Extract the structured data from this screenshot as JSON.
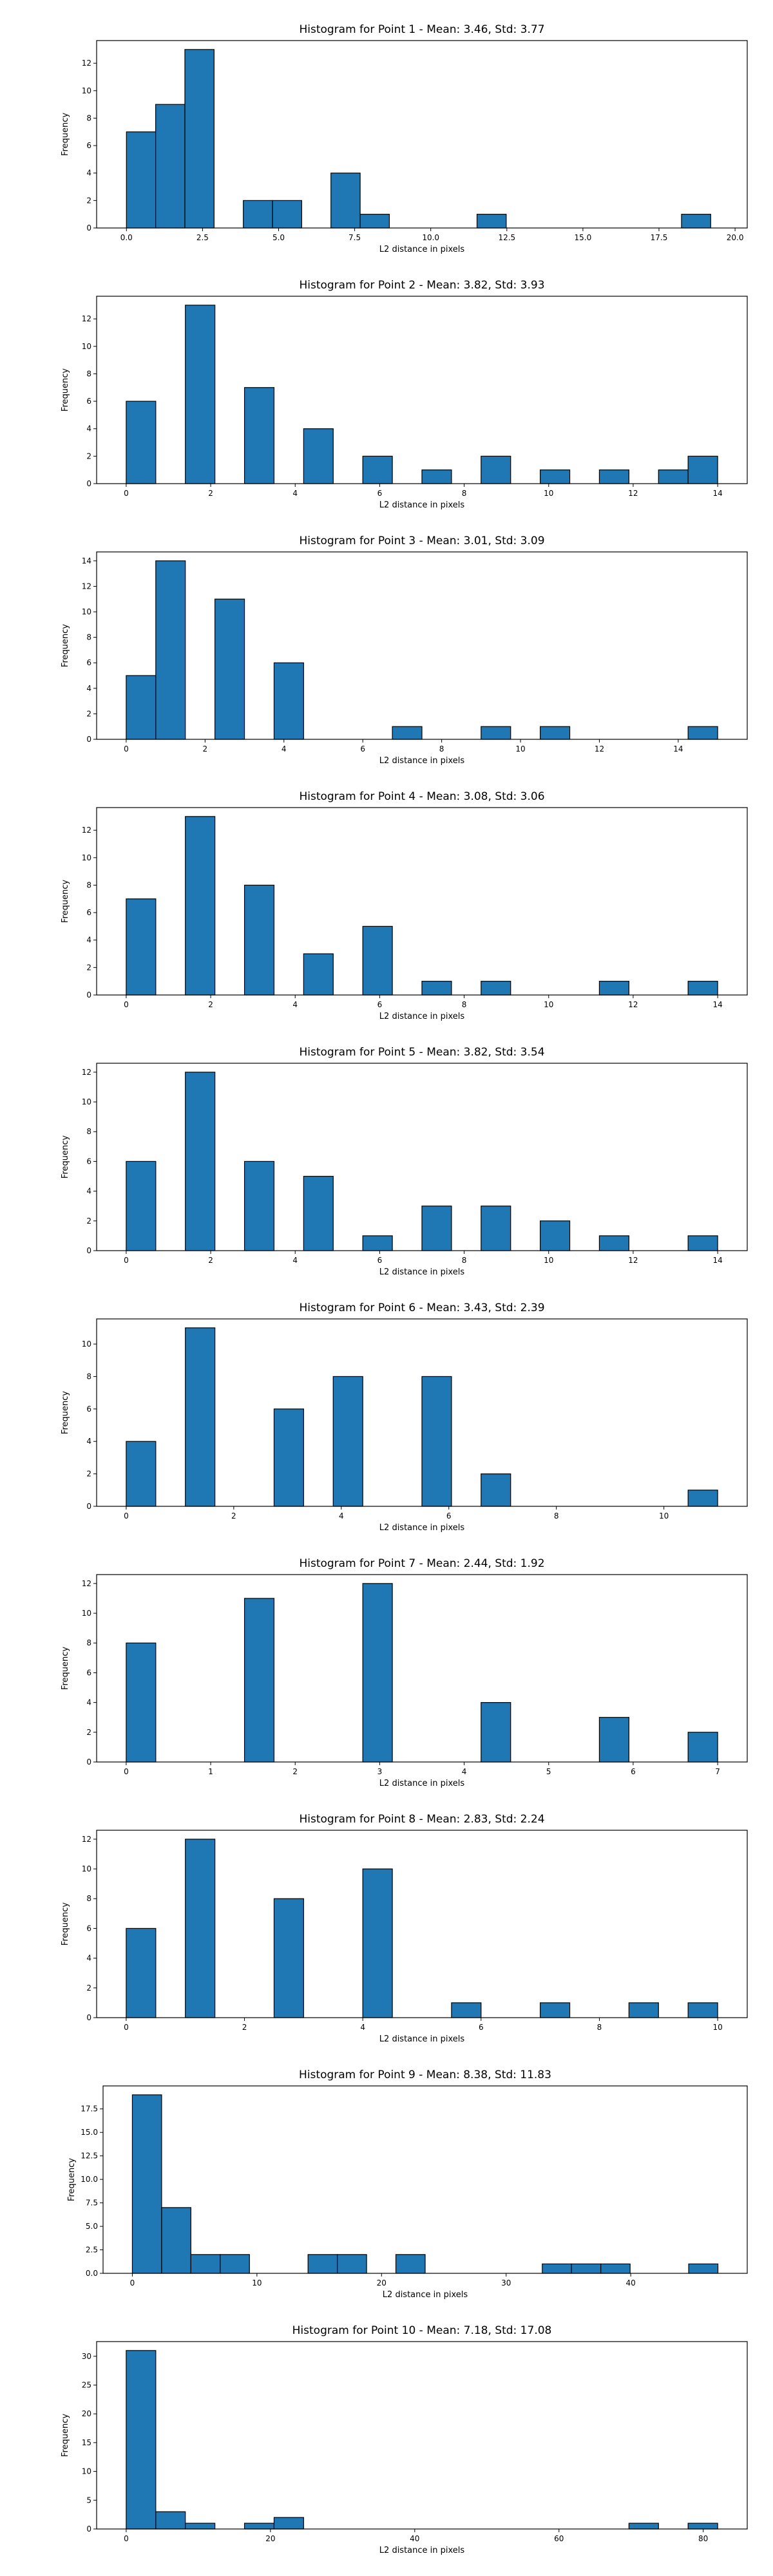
{
  "chart_data": [
    {
      "type": "bar",
      "title": "Histogram for Point 1 - Mean: 3.46, Std: 3.77",
      "xlabel": "L2 distance in pixels",
      "ylabel": "Frequency",
      "xlim": [
        -0.98,
        20.4
      ],
      "ylim": [
        0,
        13.65
      ],
      "xticks": [
        0.0,
        2.5,
        5.0,
        7.5,
        10.0,
        12.5,
        15.0,
        17.5,
        20.0
      ],
      "xtick_labels": [
        "0.0",
        "2.5",
        "5.0",
        "7.5",
        "10.0",
        "12.5",
        "15.0",
        "17.5",
        "20.0"
      ],
      "yticks": [
        0,
        2,
        4,
        6,
        8,
        10,
        12
      ],
      "ytick_labels": [
        "0",
        "2",
        "4",
        "6",
        "8",
        "10",
        "12"
      ],
      "bins": [
        {
          "x0": 0.0,
          "x1": 0.96,
          "count": 7
        },
        {
          "x0": 0.96,
          "x1": 1.92,
          "count": 9
        },
        {
          "x0": 1.92,
          "x1": 2.88,
          "count": 13
        },
        {
          "x0": 3.84,
          "x1": 4.8,
          "count": 2
        },
        {
          "x0": 4.8,
          "x1": 5.76,
          "count": 2
        },
        {
          "x0": 6.72,
          "x1": 7.68,
          "count": 4
        },
        {
          "x0": 7.68,
          "x1": 8.64,
          "count": 1
        },
        {
          "x0": 11.52,
          "x1": 12.48,
          "count": 1
        },
        {
          "x0": 18.24,
          "x1": 19.2,
          "count": 1
        }
      ]
    },
    {
      "type": "bar",
      "title": "Histogram for Point 2 - Mean: 3.82, Std: 3.93",
      "xlabel": "L2 distance in pixels",
      "ylabel": "Frequency",
      "xlim": [
        -0.7,
        14.7
      ],
      "ylim": [
        0,
        13.65
      ],
      "xticks": [
        0,
        2,
        4,
        6,
        8,
        10,
        12,
        14
      ],
      "xtick_labels": [
        "0",
        "2",
        "4",
        "6",
        "8",
        "10",
        "12",
        "14"
      ],
      "yticks": [
        0,
        2,
        4,
        6,
        8,
        10,
        12
      ],
      "ytick_labels": [
        "0",
        "2",
        "4",
        "6",
        "8",
        "10",
        "12"
      ],
      "bins": [
        {
          "x0": 0.0,
          "x1": 0.7,
          "count": 6
        },
        {
          "x0": 1.4,
          "x1": 2.1,
          "count": 13
        },
        {
          "x0": 2.8,
          "x1": 3.5,
          "count": 7
        },
        {
          "x0": 4.2,
          "x1": 4.9,
          "count": 4
        },
        {
          "x0": 5.6,
          "x1": 6.3,
          "count": 2
        },
        {
          "x0": 7.0,
          "x1": 7.7,
          "count": 1
        },
        {
          "x0": 8.4,
          "x1": 9.1,
          "count": 2
        },
        {
          "x0": 9.8,
          "x1": 10.5,
          "count": 1
        },
        {
          "x0": 11.2,
          "x1": 11.9,
          "count": 1
        },
        {
          "x0": 12.6,
          "x1": 13.3,
          "count": 1
        },
        {
          "x0": 13.3,
          "x1": 14.0,
          "count": 2
        }
      ]
    },
    {
      "type": "bar",
      "title": "Histogram for Point 3 - Mean: 3.01, Std: 3.09",
      "xlabel": "L2 distance in pixels",
      "ylabel": "Frequency",
      "xlim": [
        -0.75,
        15.75
      ],
      "ylim": [
        0,
        14.7
      ],
      "xticks": [
        0,
        2,
        4,
        6,
        8,
        10,
        12,
        14
      ],
      "xtick_labels": [
        "0",
        "2",
        "4",
        "6",
        "8",
        "10",
        "12",
        "14"
      ],
      "yticks": [
        0,
        2,
        4,
        6,
        8,
        10,
        12,
        14
      ],
      "ytick_labels": [
        "0",
        "2",
        "4",
        "6",
        "8",
        "10",
        "12",
        "14"
      ],
      "bins": [
        {
          "x0": 0.0,
          "x1": 0.75,
          "count": 5
        },
        {
          "x0": 0.75,
          "x1": 1.5,
          "count": 14
        },
        {
          "x0": 2.25,
          "x1": 3.0,
          "count": 11
        },
        {
          "x0": 3.75,
          "x1": 4.5,
          "count": 6
        },
        {
          "x0": 6.75,
          "x1": 7.5,
          "count": 1
        },
        {
          "x0": 9.0,
          "x1": 9.75,
          "count": 1
        },
        {
          "x0": 10.5,
          "x1": 11.25,
          "count": 1
        },
        {
          "x0": 14.25,
          "x1": 15.0,
          "count": 1
        }
      ]
    },
    {
      "type": "bar",
      "title": "Histogram for Point 4 - Mean: 3.08, Std: 3.06",
      "xlabel": "L2 distance in pixels",
      "ylabel": "Frequency",
      "xlim": [
        -0.7,
        14.7
      ],
      "ylim": [
        0,
        13.65
      ],
      "xticks": [
        0,
        2,
        4,
        6,
        8,
        10,
        12,
        14
      ],
      "xtick_labels": [
        "0",
        "2",
        "4",
        "6",
        "8",
        "10",
        "12",
        "14"
      ],
      "yticks": [
        0,
        2,
        4,
        6,
        8,
        10,
        12
      ],
      "ytick_labels": [
        "0",
        "2",
        "4",
        "6",
        "8",
        "10",
        "12"
      ],
      "bins": [
        {
          "x0": 0.0,
          "x1": 0.7,
          "count": 7
        },
        {
          "x0": 1.4,
          "x1": 2.1,
          "count": 13
        },
        {
          "x0": 2.8,
          "x1": 3.5,
          "count": 8
        },
        {
          "x0": 4.2,
          "x1": 4.9,
          "count": 3
        },
        {
          "x0": 5.6,
          "x1": 6.3,
          "count": 5
        },
        {
          "x0": 7.0,
          "x1": 7.7,
          "count": 1
        },
        {
          "x0": 8.4,
          "x1": 9.1,
          "count": 1
        },
        {
          "x0": 11.2,
          "x1": 11.9,
          "count": 1
        },
        {
          "x0": 13.3,
          "x1": 14.0,
          "count": 1
        }
      ]
    },
    {
      "type": "bar",
      "title": "Histogram for Point 5 - Mean: 3.82, Std: 3.54",
      "xlabel": "L2 distance in pixels",
      "ylabel": "Frequency",
      "xlim": [
        -0.7,
        14.7
      ],
      "ylim": [
        0,
        12.6
      ],
      "xticks": [
        0,
        2,
        4,
        6,
        8,
        10,
        12,
        14
      ],
      "xtick_labels": [
        "0",
        "2",
        "4",
        "6",
        "8",
        "10",
        "12",
        "14"
      ],
      "yticks": [
        0,
        2,
        4,
        6,
        8,
        10,
        12
      ],
      "ytick_labels": [
        "0",
        "2",
        "4",
        "6",
        "8",
        "10",
        "12"
      ],
      "bins": [
        {
          "x0": 0.0,
          "x1": 0.7,
          "count": 6
        },
        {
          "x0": 1.4,
          "x1": 2.1,
          "count": 12
        },
        {
          "x0": 2.8,
          "x1": 3.5,
          "count": 6
        },
        {
          "x0": 4.2,
          "x1": 4.9,
          "count": 5
        },
        {
          "x0": 5.6,
          "x1": 6.3,
          "count": 1
        },
        {
          "x0": 7.0,
          "x1": 7.7,
          "count": 3
        },
        {
          "x0": 8.4,
          "x1": 9.1,
          "count": 3
        },
        {
          "x0": 9.8,
          "x1": 10.5,
          "count": 2
        },
        {
          "x0": 11.2,
          "x1": 11.9,
          "count": 1
        },
        {
          "x0": 13.3,
          "x1": 14.0,
          "count": 1
        }
      ]
    },
    {
      "type": "bar",
      "title": "Histogram for Point 6 - Mean: 3.43, Std: 2.39",
      "xlabel": "L2 distance in pixels",
      "ylabel": "Frequency",
      "xlim": [
        -0.55,
        11.55
      ],
      "ylim": [
        0,
        11.55
      ],
      "xticks": [
        0,
        2,
        4,
        6,
        8,
        10
      ],
      "xtick_labels": [
        "0",
        "2",
        "4",
        "6",
        "8",
        "10"
      ],
      "yticks": [
        0,
        2,
        4,
        6,
        8,
        10
      ],
      "ytick_labels": [
        "0",
        "2",
        "4",
        "6",
        "8",
        "10"
      ],
      "bins": [
        {
          "x0": 0.0,
          "x1": 0.55,
          "count": 4
        },
        {
          "x0": 1.1,
          "x1": 1.65,
          "count": 11
        },
        {
          "x0": 2.75,
          "x1": 3.3,
          "count": 6
        },
        {
          "x0": 3.85,
          "x1": 4.4,
          "count": 8
        },
        {
          "x0": 5.5,
          "x1": 6.05,
          "count": 8
        },
        {
          "x0": 6.6,
          "x1": 7.15,
          "count": 2
        },
        {
          "x0": 10.45,
          "x1": 11.0,
          "count": 1
        }
      ]
    },
    {
      "type": "bar",
      "title": "Histogram for Point 7 - Mean: 2.44, Std: 1.92",
      "xlabel": "L2 distance in pixels",
      "ylabel": "Frequency",
      "xlim": [
        -0.35,
        7.35
      ],
      "ylim": [
        0,
        12.6
      ],
      "xticks": [
        0,
        1,
        2,
        3,
        4,
        5,
        6,
        7
      ],
      "xtick_labels": [
        "0",
        "1",
        "2",
        "3",
        "4",
        "5",
        "6",
        "7"
      ],
      "yticks": [
        0,
        2,
        4,
        6,
        8,
        10,
        12
      ],
      "ytick_labels": [
        "0",
        "2",
        "4",
        "6",
        "8",
        "10",
        "12"
      ],
      "bins": [
        {
          "x0": 0.0,
          "x1": 0.35,
          "count": 8
        },
        {
          "x0": 1.4,
          "x1": 1.75,
          "count": 11
        },
        {
          "x0": 2.8,
          "x1": 3.15,
          "count": 12
        },
        {
          "x0": 4.2,
          "x1": 4.55,
          "count": 4
        },
        {
          "x0": 5.6,
          "x1": 5.95,
          "count": 3
        },
        {
          "x0": 6.65,
          "x1": 7.0,
          "count": 2
        }
      ]
    },
    {
      "type": "bar",
      "title": "Histogram for Point 8 - Mean: 2.83, Std: 2.24",
      "xlabel": "L2 distance in pixels",
      "ylabel": "Frequency",
      "xlim": [
        -0.5,
        10.5
      ],
      "ylim": [
        0,
        12.6
      ],
      "xticks": [
        0,
        2,
        4,
        6,
        8,
        10
      ],
      "xtick_labels": [
        "0",
        "2",
        "4",
        "6",
        "8",
        "10"
      ],
      "yticks": [
        0,
        2,
        4,
        6,
        8,
        10,
        12
      ],
      "ytick_labels": [
        "0",
        "2",
        "4",
        "6",
        "8",
        "10",
        "12"
      ],
      "bins": [
        {
          "x0": 0.0,
          "x1": 0.5,
          "count": 6
        },
        {
          "x0": 1.0,
          "x1": 1.5,
          "count": 12
        },
        {
          "x0": 2.5,
          "x1": 3.0,
          "count": 8
        },
        {
          "x0": 4.0,
          "x1": 4.5,
          "count": 10
        },
        {
          "x0": 5.5,
          "x1": 6.0,
          "count": 1
        },
        {
          "x0": 7.0,
          "x1": 7.5,
          "count": 1
        },
        {
          "x0": 8.5,
          "x1": 9.0,
          "count": 1
        },
        {
          "x0": 9.5,
          "x1": 10.0,
          "count": 1
        }
      ]
    },
    {
      "type": "bar",
      "title": "Histogram for Point 9 - Mean: 8.38, Std: 11.83",
      "xlabel": "L2 distance in pixels",
      "ylabel": "Frequency",
      "xlim": [
        -2.35,
        49.35
      ],
      "ylim": [
        0,
        19.95
      ],
      "xticks": [
        0,
        10,
        20,
        30,
        40
      ],
      "xtick_labels": [
        "0",
        "10",
        "20",
        "30",
        "40"
      ],
      "yticks": [
        0,
        2.5,
        5.0,
        7.5,
        10.0,
        12.5,
        15.0,
        17.5
      ],
      "ytick_labels": [
        "0.0",
        "2.5",
        "5.0",
        "7.5",
        "10.0",
        "12.5",
        "15.0",
        "17.5"
      ],
      "bins": [
        {
          "x0": 0.0,
          "x1": 2.35,
          "count": 19
        },
        {
          "x0": 2.35,
          "x1": 4.7,
          "count": 7
        },
        {
          "x0": 4.7,
          "x1": 7.05,
          "count": 2
        },
        {
          "x0": 7.05,
          "x1": 9.4,
          "count": 2
        },
        {
          "x0": 14.1,
          "x1": 16.45,
          "count": 2
        },
        {
          "x0": 16.45,
          "x1": 18.8,
          "count": 2
        },
        {
          "x0": 21.15,
          "x1": 23.5,
          "count": 2
        },
        {
          "x0": 32.9,
          "x1": 35.25,
          "count": 1
        },
        {
          "x0": 35.25,
          "x1": 37.6,
          "count": 1
        },
        {
          "x0": 37.6,
          "x1": 39.95,
          "count": 1
        },
        {
          "x0": 44.65,
          "x1": 47.0,
          "count": 1
        }
      ]
    },
    {
      "type": "bar",
      "title": "Histogram for Point 10 - Mean: 7.18, Std: 17.08",
      "xlabel": "L2 distance in pixels",
      "ylabel": "Frequency",
      "xlim": [
        -4.1,
        86.1
      ],
      "ylim": [
        0,
        32.55
      ],
      "xticks": [
        0,
        20,
        40,
        60,
        80
      ],
      "xtick_labels": [
        "0",
        "20",
        "40",
        "60",
        "80"
      ],
      "yticks": [
        0,
        5,
        10,
        15,
        20,
        25,
        30
      ],
      "ytick_labels": [
        "0",
        "5",
        "10",
        "15",
        "20",
        "25",
        "30"
      ],
      "bins": [
        {
          "x0": 0.0,
          "x1": 4.1,
          "count": 31
        },
        {
          "x0": 4.1,
          "x1": 8.2,
          "count": 3
        },
        {
          "x0": 8.2,
          "x1": 12.3,
          "count": 1
        },
        {
          "x0": 16.4,
          "x1": 20.5,
          "count": 1
        },
        {
          "x0": 20.5,
          "x1": 24.6,
          "count": 2
        },
        {
          "x0": 69.7,
          "x1": 73.8,
          "count": 1
        },
        {
          "x0": 77.9,
          "x1": 82.0,
          "count": 1
        }
      ]
    }
  ],
  "colors": {
    "bar_fill": "#1f77b4",
    "bar_edge": "#000000",
    "axes": "#000000",
    "text": "#000000"
  }
}
